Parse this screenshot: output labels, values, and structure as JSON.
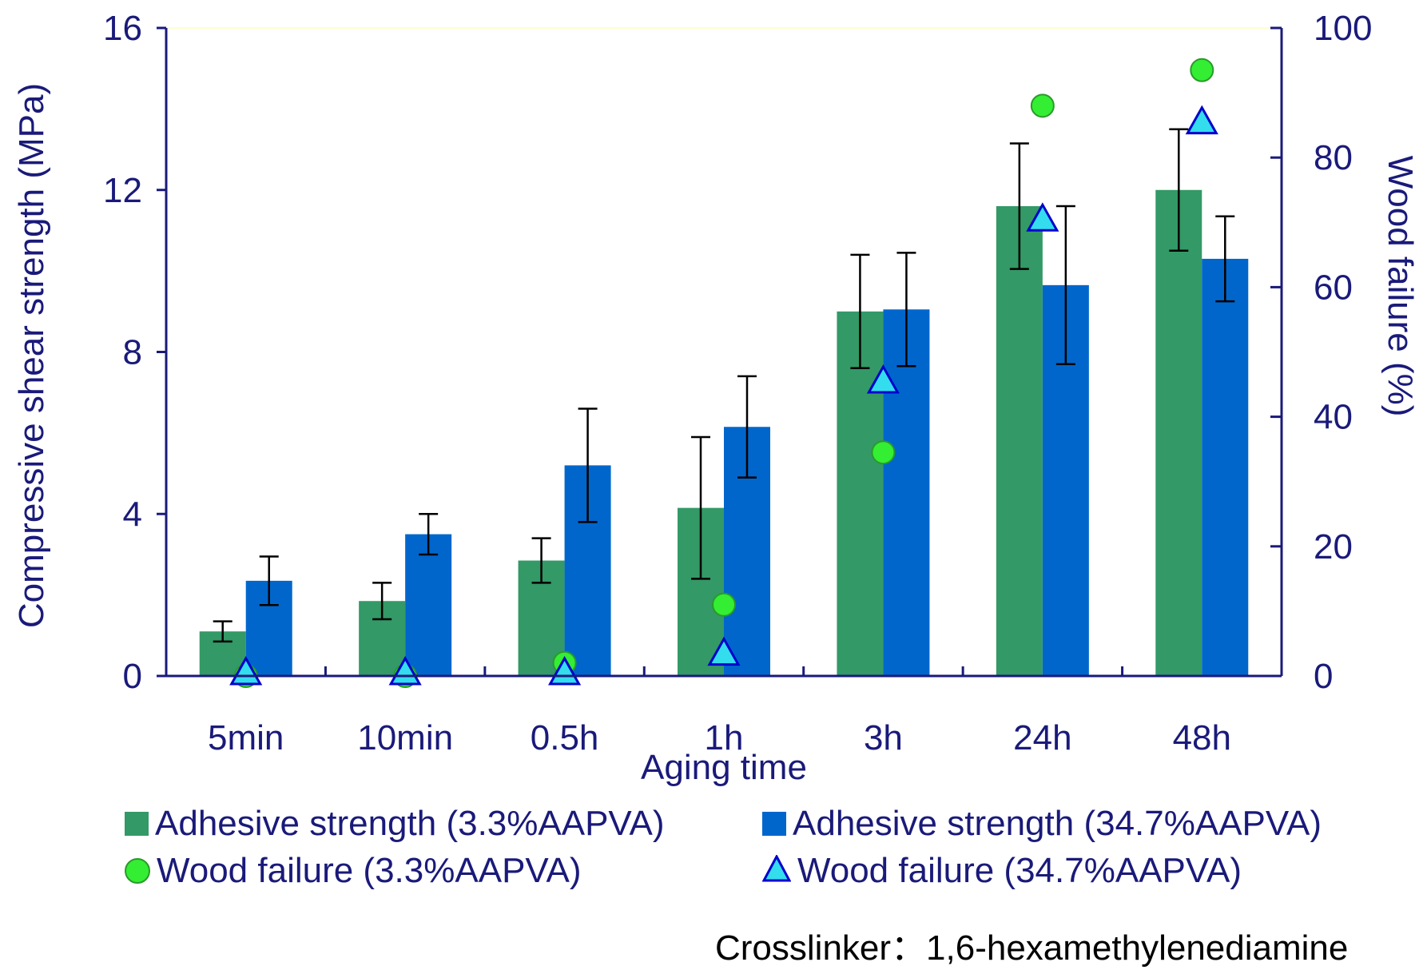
{
  "chart_data": {
    "type": "bar",
    "categories": [
      "5min",
      "10min",
      "0.5h",
      "1h",
      "3h",
      "24h",
      "48h"
    ],
    "xlabel": "Aging time",
    "ylabel": "Compressive shear strength (MPa)",
    "ylabel_right": "Wood failure (%)",
    "ylim": [
      0,
      16
    ],
    "ylim_right": [
      0,
      100
    ],
    "yticks": [
      "0",
      "4",
      "8",
      "12",
      "16"
    ],
    "yticks_right": [
      "0",
      "20",
      "40",
      "60",
      "80",
      "100"
    ],
    "series": [
      {
        "name": "Adhesive strength (3.3%AAPVA)",
        "kind": "bar",
        "axis": "left",
        "color": "#339966",
        "values": [
          1.1,
          1.85,
          2.85,
          4.15,
          9.0,
          11.6,
          12.0
        ],
        "errors": [
          0.25,
          0.45,
          0.55,
          1.75,
          1.4,
          1.55,
          1.5
        ]
      },
      {
        "name": "Adhesive strength (34.7%AAPVA)",
        "kind": "bar",
        "axis": "left",
        "color": "#0066cc",
        "values": [
          2.35,
          3.5,
          5.2,
          6.15,
          9.05,
          9.65,
          10.3
        ],
        "errors": [
          0.6,
          0.5,
          1.4,
          1.25,
          1.4,
          1.95,
          1.05
        ]
      },
      {
        "name": "Wood failure (3.3%AAPVA)",
        "kind": "marker",
        "marker": "circle",
        "axis": "right",
        "color": "#33ee33",
        "values": [
          0,
          0,
          2,
          11,
          34.5,
          88,
          93.5
        ]
      },
      {
        "name": "Wood failure (34.7%AAPVA)",
        "kind": "marker",
        "marker": "triangle",
        "axis": "right",
        "color": "#33ddee",
        "values": [
          0,
          0,
          0,
          3,
          45,
          70,
          85
        ]
      }
    ],
    "grid": false,
    "legend_position": "bottom"
  },
  "footnote": "Crosslinker：1,6-hexamethylenediamine"
}
